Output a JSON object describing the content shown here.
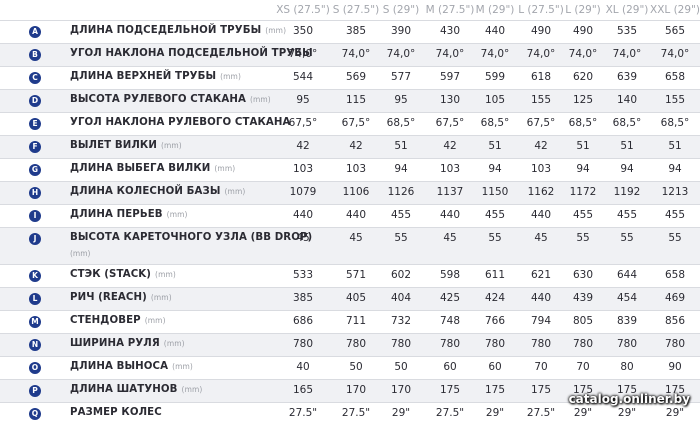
{
  "table": {
    "columns": [
      "XS (27.5\")",
      "S (27.5\")",
      "S (29\")",
      "M (27.5\")",
      "M (29\")",
      "L (27.5\")",
      "L (29\")",
      "XL (29\")",
      "XXL (29\")"
    ],
    "rows": [
      {
        "letter": "A",
        "label": "ДЛИНА ПОДСЕДЕЛЬНОЙ ТРУБЫ",
        "unit": "(mm)",
        "values": [
          "350",
          "385",
          "390",
          "430",
          "440",
          "490",
          "490",
          "535",
          "565"
        ]
      },
      {
        "letter": "B",
        "label": "УГОЛ НАКЛОНА ПОДСЕДЕЛЬНОЙ ТРУБЫ",
        "unit": "",
        "values": [
          "74,0°",
          "74,0°",
          "74,0°",
          "74,0°",
          "74,0°",
          "74,0°",
          "74,0°",
          "74,0°",
          "74,0°"
        ]
      },
      {
        "letter": "C",
        "label": "ДЛИНА ВЕРХНЕЙ ТРУБЫ",
        "unit": "(mm)",
        "values": [
          "544",
          "569",
          "577",
          "597",
          "599",
          "618",
          "620",
          "639",
          "658"
        ]
      },
      {
        "letter": "D",
        "label": "ВЫСОТА РУЛЕВОГО СТАКАНА",
        "unit": "(mm)",
        "values": [
          "95",
          "115",
          "95",
          "130",
          "105",
          "155",
          "125",
          "140",
          "155"
        ]
      },
      {
        "letter": "E",
        "label": "УГОЛ НАКЛОНА РУЛЕВОГО СТАКАНА",
        "unit": "",
        "values": [
          "67,5°",
          "67,5°",
          "68,5°",
          "67,5°",
          "68,5°",
          "67,5°",
          "68,5°",
          "68,5°",
          "68,5°"
        ]
      },
      {
        "letter": "F",
        "label": "ВЫЛЕТ ВИЛКИ",
        "unit": "(mm)",
        "values": [
          "42",
          "42",
          "51",
          "42",
          "51",
          "42",
          "51",
          "51",
          "51"
        ]
      },
      {
        "letter": "G",
        "label": "ДЛИНА ВЫБЕГА ВИЛКИ",
        "unit": "(mm)",
        "values": [
          "103",
          "103",
          "94",
          "103",
          "94",
          "103",
          "94",
          "94",
          "94"
        ]
      },
      {
        "letter": "H",
        "label": "ДЛИНА КОЛЕСНОЙ БАЗЫ",
        "unit": "(mm)",
        "values": [
          "1079",
          "1106",
          "1126",
          "1137",
          "1150",
          "1162",
          "1172",
          "1192",
          "1213"
        ]
      },
      {
        "letter": "I",
        "label": "ДЛИНА ПЕРЬЕВ",
        "unit": "(mm)",
        "values": [
          "440",
          "440",
          "455",
          "440",
          "455",
          "440",
          "455",
          "455",
          "455"
        ]
      },
      {
        "letter": "J",
        "label": "ВЫСОТА КАРЕТОЧНОГО УЗЛА (BB DROP)",
        "unit": "",
        "sublabel": "(mm)",
        "values": [
          "45",
          "45",
          "55",
          "45",
          "55",
          "45",
          "55",
          "55",
          "55"
        ]
      },
      {
        "letter": "K",
        "label": "СТЭК (STACK)",
        "unit": "(mm)",
        "values": [
          "533",
          "571",
          "602",
          "598",
          "611",
          "621",
          "630",
          "644",
          "658"
        ]
      },
      {
        "letter": "L",
        "label": "РИЧ (REACH)",
        "unit": "(mm)",
        "values": [
          "385",
          "405",
          "404",
          "425",
          "424",
          "440",
          "439",
          "454",
          "469"
        ]
      },
      {
        "letter": "M",
        "label": "СТЕНДОВЕР",
        "unit": "(mm)",
        "values": [
          "686",
          "711",
          "732",
          "748",
          "766",
          "794",
          "805",
          "839",
          "856"
        ]
      },
      {
        "letter": "N",
        "label": "ШИРИНА РУЛЯ",
        "unit": "(mm)",
        "values": [
          "780",
          "780",
          "780",
          "780",
          "780",
          "780",
          "780",
          "780",
          "780"
        ]
      },
      {
        "letter": "O",
        "label": "ДЛИНА ВЫНОСА",
        "unit": "(mm)",
        "values": [
          "40",
          "50",
          "50",
          "60",
          "60",
          "70",
          "70",
          "80",
          "90"
        ]
      },
      {
        "letter": "P",
        "label": "ДЛИНА ШАТУНОВ",
        "unit": "(mm)",
        "values": [
          "165",
          "170",
          "170",
          "175",
          "175",
          "175",
          "175",
          "175",
          "175"
        ]
      },
      {
        "letter": "Q",
        "label": "РАЗМЕР КОЛЕС",
        "unit": "",
        "values": [
          "27.5\"",
          "27.5\"",
          "29\"",
          "27.5\"",
          "29\"",
          "27.5\"",
          "29\"",
          "29\"",
          "29\""
        ]
      }
    ]
  },
  "watermark": "catalog.onliner.by"
}
